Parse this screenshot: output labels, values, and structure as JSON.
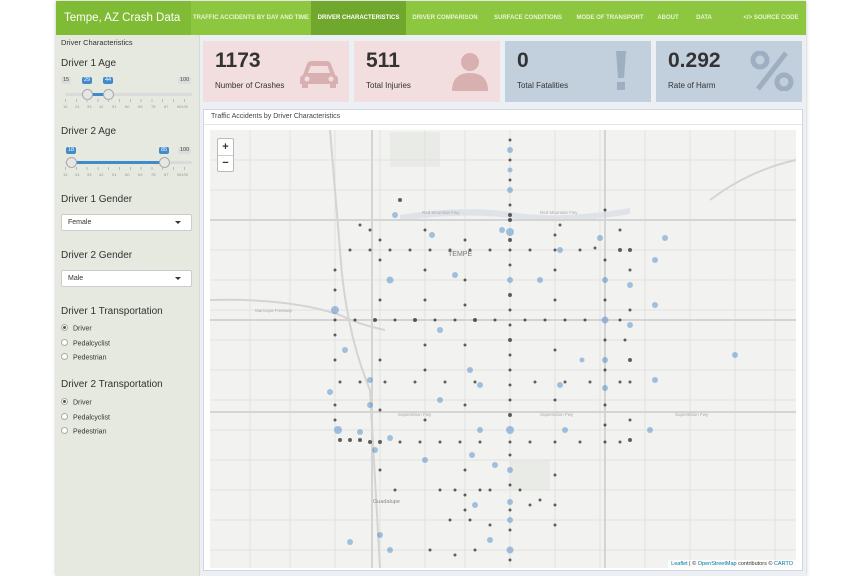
{
  "header": {
    "title": "Tempe, AZ Crash Data",
    "tabs": [
      {
        "label": "TRAFFIC ACCIDENTS BY DAY AND TIME",
        "active": false
      },
      {
        "label": "DRIVER CHARACTERISTICS",
        "active": true
      },
      {
        "label": "DRIVER COMPARISON",
        "active": false
      },
      {
        "label": "SURFACE CONDITIONS",
        "active": false
      },
      {
        "label": "MODE OF TRANSPORT",
        "active": false
      },
      {
        "label": "ABOUT",
        "active": false
      },
      {
        "label": "DATA",
        "active": false
      }
    ],
    "source_code": {
      "label": "SOURCE CODE",
      "icon": "code-icon"
    }
  },
  "sidebar": {
    "heading": "Driver Characteristics",
    "driver1_age": {
      "label": "Driver 1 Age",
      "min": 15,
      "max": 100,
      "from": 29,
      "to": 44,
      "ticks": [
        "15",
        "24",
        "33",
        "42",
        "51",
        "60",
        "69",
        "78",
        "87",
        "96100"
      ]
    },
    "driver2_age": {
      "label": "Driver 2 Age",
      "min": 15,
      "max": 100,
      "from": 18,
      "to": 85,
      "ticks": [
        "15",
        "24",
        "33",
        "42",
        "51",
        "60",
        "69",
        "78",
        "87",
        "96100"
      ]
    },
    "driver1_gender": {
      "label": "Driver 1 Gender",
      "value": "Female"
    },
    "driver2_gender": {
      "label": "Driver 2 Gender",
      "value": "Male"
    },
    "driver1_transport": {
      "label": "Driver 1 Transportation",
      "options": [
        "Driver",
        "Pedalcyclist",
        "Pedestrian"
      ],
      "selected": 0
    },
    "driver2_transport": {
      "label": "Driver 2 Transportation",
      "options": [
        "Driver",
        "Pedalcyclist",
        "Pedestrian"
      ],
      "selected": 0
    }
  },
  "value_boxes": [
    {
      "value": "1173",
      "label": "Number of Crashes",
      "icon": "car-icon",
      "color": "#f2dede"
    },
    {
      "value": "511",
      "label": "Total Injuries",
      "icon": "user-icon",
      "color": "#f2dede"
    },
    {
      "value": "0",
      "label": "Total Fatalities",
      "icon": "exclamation-icon",
      "color": "#c2cfdc"
    },
    {
      "value": "0.292",
      "label": "Rate of Harm",
      "icon": "percent-icon",
      "color": "#c2cfdc"
    }
  ],
  "map": {
    "title": "Traffic Accidents by Driver Characteristics",
    "zoom_in": "+",
    "zoom_out": "−",
    "city_label": "TEMPE",
    "place_labels": [
      "Red Mountain Fwy",
      "Superstition Fwy",
      "Maricopa Freeway",
      "Guadalupe"
    ],
    "attribution": {
      "leaflet": "Leaflet",
      "sep1": " | © ",
      "osm": "OpenStreetMap",
      "mid": " contributors © ",
      "carto": "CARTO"
    },
    "colors": {
      "black_point": "#111111",
      "blue_point": "#3e82c4"
    }
  }
}
